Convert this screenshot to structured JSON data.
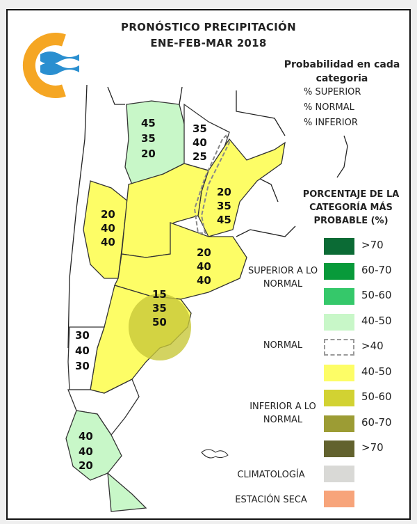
{
  "title": {
    "line1": "PRONÓSTICO PRECIPITACIÓN",
    "line2": "ENE-FEB-MAR 2018"
  },
  "logo": {
    "name": "smn-logo",
    "colors": {
      "ring": "#f5a623",
      "waves": "#2a8fd0"
    }
  },
  "probability_key": {
    "title": "Probabilidad en cada categoria",
    "items": [
      "% SUPERIOR",
      "% NORMAL",
      "% INFERIOR"
    ]
  },
  "legend": {
    "title": "PORCENTAJE DE LA CATEGORÍA MÁS PROBABLE (%)",
    "groups": {
      "superior": "SUPERIOR A LO NORMAL",
      "normal": "NORMAL",
      "inferior": "INFERIOR A LO NORMAL",
      "climatologia": "CLIMATOLOGÍA",
      "seca": "ESTACIÓN SECA"
    },
    "items": [
      {
        "label": ">70",
        "color": "#0b6b35"
      },
      {
        "label": "60-70",
        "color": "#089a3a"
      },
      {
        "label": "50-60",
        "color": "#35c86a"
      },
      {
        "label": "40-50",
        "color": "#c8f7c8"
      },
      {
        "label": ">40",
        "color": "dashed-gray"
      },
      {
        "label": "40-50",
        "color": "#fdfd66"
      },
      {
        "label": "50-60",
        "color": "#d2d232"
      },
      {
        "label": "60-70",
        "color": "#9c9c34"
      },
      {
        "label": ">70",
        "color": "#62622e"
      },
      {
        "label": "",
        "color": "#d9d9d6"
      },
      {
        "label": "",
        "color": "#f7a47a"
      }
    ]
  },
  "regions": [
    {
      "name": "noroeste",
      "values": [
        "45",
        "35",
        "20"
      ],
      "fill": "#c8f7c8"
    },
    {
      "name": "noreste",
      "values": [
        "35",
        "40",
        "25"
      ],
      "fill": "#ffffff"
    },
    {
      "name": "litoral",
      "values": [
        "20",
        "35",
        "45"
      ],
      "fill": "#fdfd66"
    },
    {
      "name": "cuyo",
      "values": [
        "20",
        "40",
        "40"
      ],
      "fill": "#fdfd66"
    },
    {
      "name": "centro",
      "values": [
        "20",
        "40",
        "40"
      ],
      "fill": "#fdfd66"
    },
    {
      "name": "buenos-aires",
      "values": [
        "15",
        "35",
        "50"
      ],
      "fill": "#fdfd66"
    },
    {
      "name": "patagonia-norte",
      "values": [
        "30",
        "40",
        "30"
      ],
      "fill": "#ffffff"
    },
    {
      "name": "patagonia-sur",
      "values": [
        "40",
        "40",
        "20"
      ],
      "fill": "#c8f7c8"
    }
  ]
}
